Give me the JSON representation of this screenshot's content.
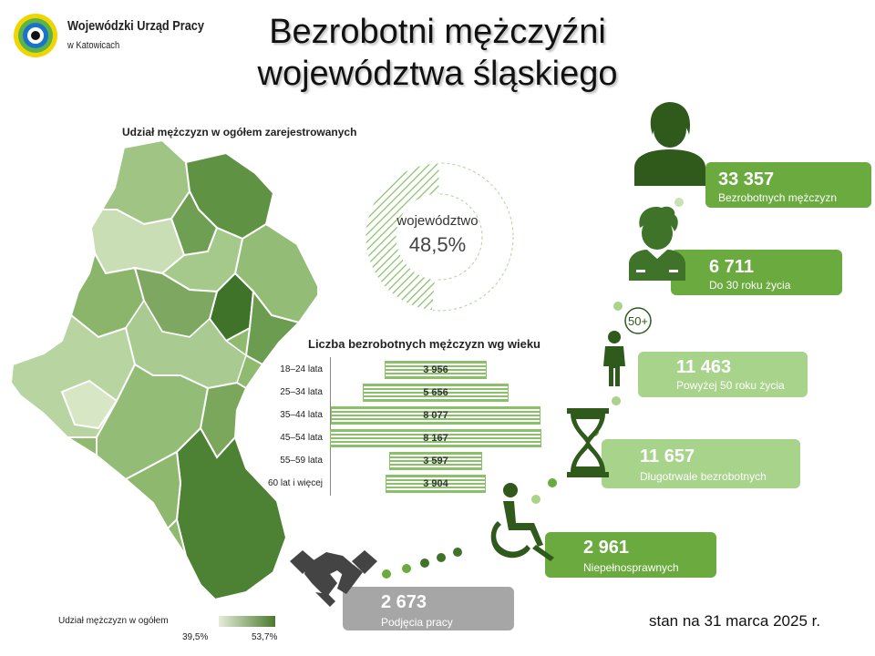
{
  "header": {
    "org_name": "Wojewódzki Urząd Pracy",
    "org_city": "w Katowicach",
    "title_line1": "Bezrobotni mężczyźni",
    "title_line2": "województwa śląskiego"
  },
  "map": {
    "title": "Udział mężczyzn w ogółem zarejestrowanych",
    "legend_title": "Udział mężczyzn w ogółem",
    "legend_min": "39,5%",
    "legend_max": "53,7%"
  },
  "donut": {
    "label": "województwo",
    "value_text": "48,5%",
    "share": 48.5
  },
  "stats": [
    {
      "value": "33 357",
      "label": "Bezrobotnych mężczyzn",
      "color": "#6aaa3e"
    },
    {
      "value": "6 711",
      "label": "Do 30 roku życia",
      "color": "#6aaa3e"
    },
    {
      "value": "11 463",
      "label": "Powyżej 50 roku życia",
      "color": "#a8d38a"
    },
    {
      "value": "11 657",
      "label": "Długotrwale bezrobotnych",
      "color": "#a8d38a"
    },
    {
      "value": "2 961",
      "label": "Niepełnosprawnych",
      "color": "#6aaa3e"
    },
    {
      "value": "2 673",
      "label": "Podjęcia pracy",
      "color": "#a6a6a6"
    }
  ],
  "icons": {
    "man": "man-icon",
    "young_man": "young-man-icon",
    "senior": "senior-50-plus-icon",
    "senior_badge": "50+",
    "hourglass": "hourglass-icon",
    "wheelchair": "wheelchair-icon",
    "handshake": "handshake-icon"
  },
  "footer": {
    "date_text": "stan na 31 marca 2025 r."
  },
  "chart_data": {
    "type": "bar",
    "orientation": "horizontal-centered",
    "title": "Liczba bezrobotnych mężczyzn wg wieku",
    "categories": [
      "18–24 lata",
      "25–34 lata",
      "35–44 lata",
      "45–54 lata",
      "55–59 lata",
      "60 lat i więcej"
    ],
    "values": [
      3956,
      5656,
      8077,
      8167,
      3597,
      3904
    ],
    "value_labels": [
      "3 956",
      "5 656",
      "8 077",
      "8 167",
      "3 597",
      "3 904"
    ],
    "bar_color": "#8bc06a",
    "grid": false
  }
}
